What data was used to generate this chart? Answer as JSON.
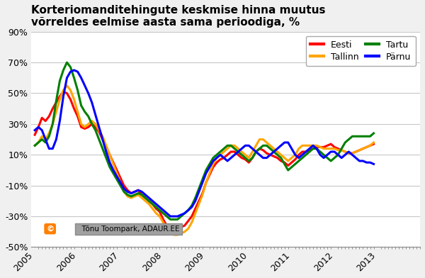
{
  "title": "Korteriomanditehingute keskmise hinna muutus\nvõrreldes eelmise aasta sama perioodiga, %",
  "series": {
    "Eesti": {
      "color": "#FF0000",
      "data": [
        23,
        28,
        34,
        32,
        35,
        40,
        44,
        48,
        51,
        50,
        46,
        40,
        35,
        28,
        27,
        28,
        30,
        28,
        25,
        20,
        15,
        10,
        5,
        0,
        -5,
        -10,
        -13,
        -15,
        -14,
        -13,
        -16,
        -18,
        -20,
        -22,
        -25,
        -27,
        -32,
        -36,
        -38,
        -39,
        -38,
        -37,
        -36,
        -33,
        -30,
        -25,
        -20,
        -15,
        -8,
        -3,
        2,
        5,
        7,
        8,
        10,
        12,
        12,
        10,
        8,
        7,
        5,
        8,
        12,
        14,
        13,
        11,
        10,
        9,
        8,
        6,
        5,
        3,
        5,
        7,
        10,
        12,
        12,
        13,
        14,
        15,
        15,
        15,
        16,
        17,
        15,
        14,
        13,
        12,
        11,
        11,
        12,
        13,
        14,
        15,
        16,
        17
      ]
    },
    "Tallinn": {
      "color": "#FFA500",
      "data": [
        16,
        18,
        22,
        20,
        24,
        30,
        38,
        46,
        52,
        55,
        52,
        46,
        38,
        30,
        28,
        30,
        32,
        30,
        26,
        22,
        16,
        10,
        4,
        -2,
        -8,
        -14,
        -17,
        -18,
        -17,
        -16,
        -18,
        -20,
        -22,
        -25,
        -28,
        -30,
        -34,
        -38,
        -40,
        -42,
        -42,
        -41,
        -40,
        -38,
        -34,
        -28,
        -22,
        -16,
        -8,
        -2,
        4,
        8,
        10,
        12,
        14,
        16,
        16,
        14,
        12,
        10,
        8,
        12,
        16,
        20,
        20,
        18,
        16,
        14,
        12,
        10,
        8,
        6,
        8,
        10,
        14,
        16,
        16,
        16,
        16,
        16,
        15,
        14,
        14,
        14,
        14,
        13,
        13,
        12,
        11,
        11,
        12,
        13,
        14,
        15,
        16,
        18
      ]
    },
    "Tartu": {
      "color": "#008000",
      "data": [
        16,
        18,
        20,
        18,
        22,
        30,
        45,
        58,
        65,
        70,
        67,
        60,
        52,
        42,
        38,
        35,
        30,
        26,
        20,
        14,
        8,
        2,
        -2,
        -6,
        -10,
        -14,
        -16,
        -17,
        -16,
        -15,
        -16,
        -18,
        -20,
        -22,
        -24,
        -26,
        -28,
        -30,
        -32,
        -32,
        -32,
        -30,
        -28,
        -26,
        -23,
        -18,
        -12,
        -6,
        0,
        4,
        8,
        10,
        12,
        14,
        16,
        16,
        14,
        12,
        10,
        8,
        6,
        8,
        12,
        14,
        16,
        16,
        14,
        12,
        10,
        8,
        4,
        0,
        2,
        4,
        6,
        8,
        10,
        12,
        14,
        14,
        12,
        10,
        8,
        6,
        8,
        10,
        14,
        18,
        20,
        22,
        22,
        22,
        22,
        22,
        22,
        24
      ]
    },
    "Parnu": {
      "color": "#0000FF",
      "data": [
        26,
        28,
        26,
        20,
        14,
        14,
        20,
        32,
        48,
        60,
        64,
        65,
        64,
        60,
        55,
        50,
        44,
        36,
        28,
        20,
        12,
        5,
        0,
        -4,
        -8,
        -12,
        -14,
        -15,
        -14,
        -13,
        -14,
        -16,
        -18,
        -20,
        -22,
        -24,
        -26,
        -28,
        -30,
        -30,
        -30,
        -29,
        -28,
        -26,
        -24,
        -20,
        -14,
        -8,
        -2,
        2,
        6,
        8,
        10,
        8,
        6,
        8,
        10,
        12,
        14,
        16,
        16,
        14,
        12,
        10,
        8,
        8,
        10,
        12,
        14,
        16,
        18,
        18,
        14,
        10,
        8,
        10,
        12,
        14,
        16,
        14,
        10,
        8,
        10,
        12,
        12,
        10,
        8,
        10,
        12,
        10,
        8,
        6,
        6,
        5,
        5,
        4
      ]
    }
  },
  "x_start": 2005.0,
  "x_step": 0.08333,
  "ylim": [
    -50,
    90
  ],
  "yticks": [
    -50,
    -30,
    -10,
    10,
    30,
    50,
    70,
    90
  ],
  "ytick_labels": [
    "-50%",
    "-30%",
    "-10%",
    "10%",
    "30%",
    "50%",
    "70%",
    "90%"
  ],
  "xtick_years": [
    2005,
    2006,
    2007,
    2008,
    2009,
    2010,
    2011,
    2012,
    2013
  ],
  "xlim_left": 2004.92,
  "xlim_right": 2014.0,
  "background_color": "#F0F0F0",
  "plot_bg_color": "#FFFFFF",
  "grid_color": "#C8C8C8",
  "copyright_text": "  Tõnu Toompark, ADAUR.EE",
  "copyright_icon_color": "#FF7F00",
  "legend_labels": [
    "Eesti",
    "Tallinn",
    "Tartu",
    "Pärnu"
  ],
  "legend_colors": [
    "#FF0000",
    "#FFA500",
    "#008000",
    "#0000FF"
  ],
  "title_fontsize": 11,
  "axis_fontsize": 9,
  "line_width": 2.2
}
